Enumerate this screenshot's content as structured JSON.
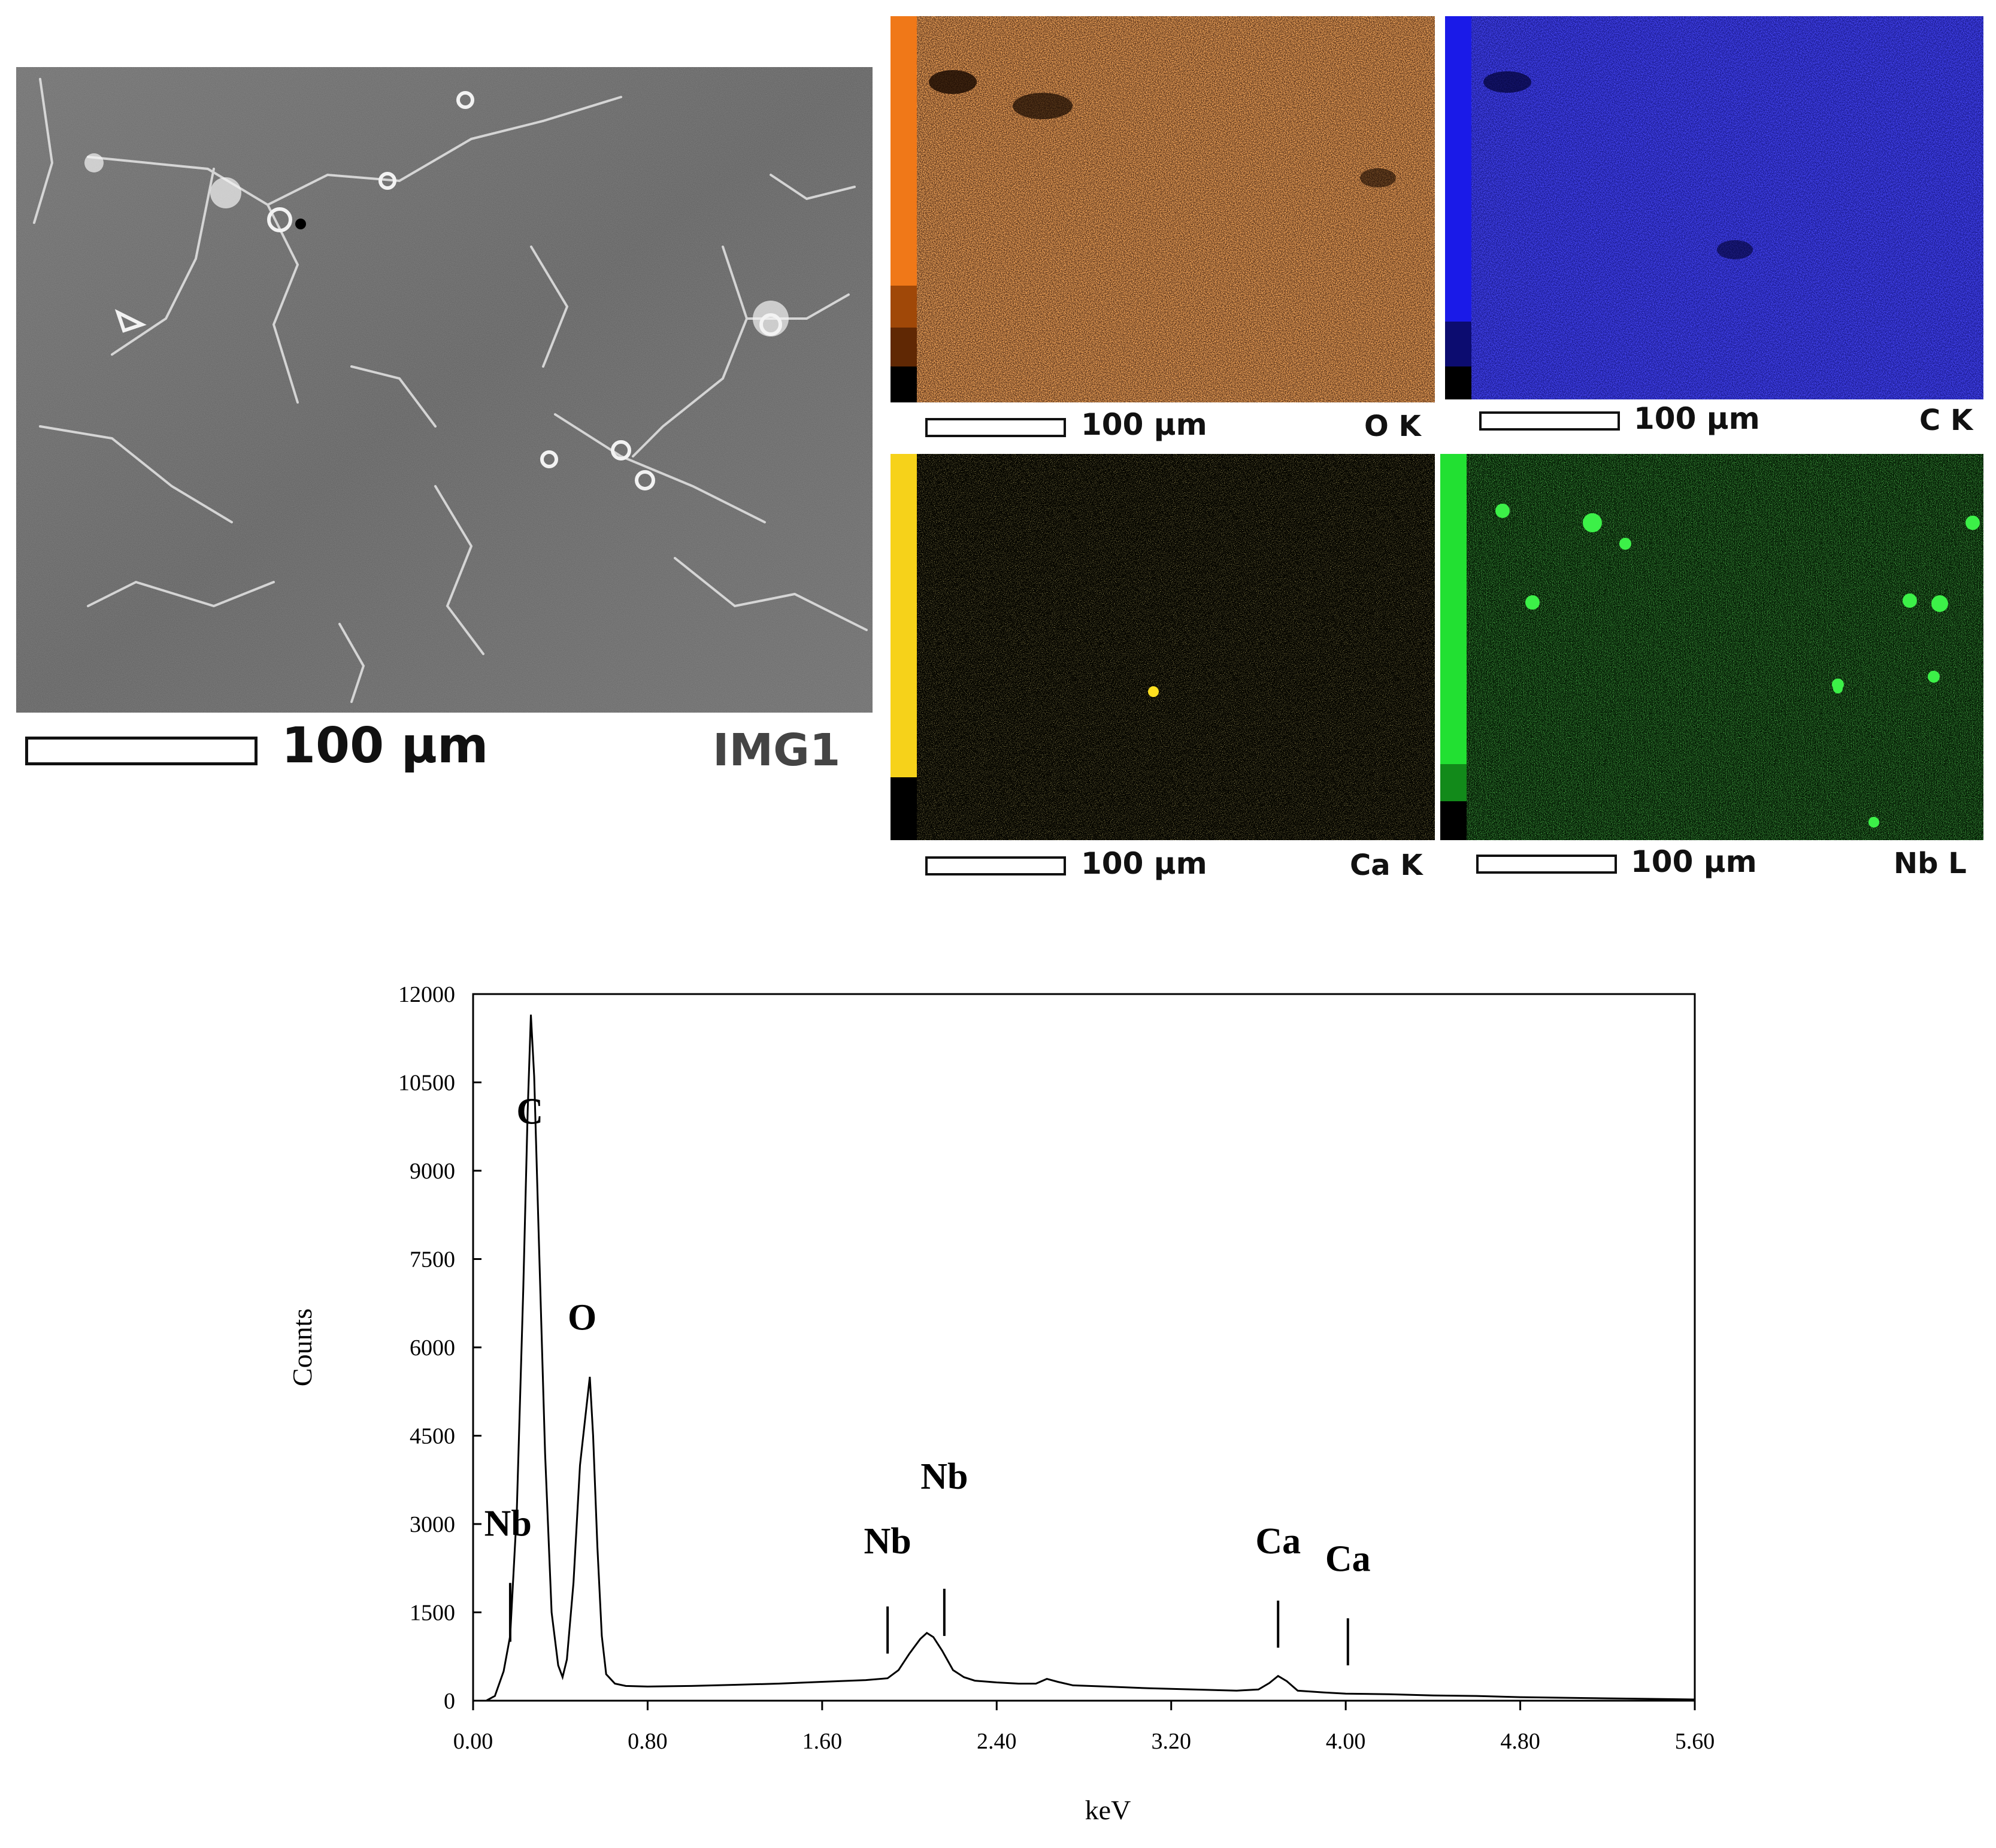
{
  "sem": {
    "scale_text": "100 µm",
    "image_label": "IMG1"
  },
  "maps": [
    {
      "id": "o",
      "scale_text": "100 µm",
      "element_label": "O K",
      "color": "#e0701a"
    },
    {
      "id": "c",
      "scale_text": "100 µm",
      "element_label": "C K",
      "color": "#1a20e0"
    },
    {
      "id": "ca",
      "scale_text": "100 µm",
      "element_label": "Ca K",
      "color": "#e8c828"
    },
    {
      "id": "nb",
      "scale_text": "100 µm",
      "element_label": "Nb L",
      "color": "#22d632"
    }
  ],
  "chart_data": {
    "type": "line",
    "title": "",
    "xlabel": "keV",
    "ylabel": "Counts",
    "xlim": [
      0.0,
      5.6
    ],
    "ylim": [
      0,
      12000
    ],
    "x_ticks": [
      "0.00",
      "0.80",
      "1.60",
      "2.40",
      "3.20",
      "4.00",
      "4.80",
      "5.60"
    ],
    "y_ticks": [
      "0",
      "1500",
      "3000",
      "4500",
      "6000",
      "7500",
      "9000",
      "10500",
      "12000"
    ],
    "grid": false,
    "peak_labels": [
      {
        "text": "C",
        "x": 0.26,
        "y": 9800
      },
      {
        "text": "O",
        "x": 0.5,
        "y": 6300
      },
      {
        "text": "Nb",
        "x": 0.16,
        "y": 2800
      },
      {
        "text": "Nb",
        "x": 1.9,
        "y": 2500
      },
      {
        "text": "Nb",
        "x": 2.16,
        "y": 3600
      },
      {
        "text": "Ca",
        "x": 3.69,
        "y": 2500
      },
      {
        "text": "Ca",
        "x": 4.01,
        "y": 2200
      }
    ],
    "markers": [
      {
        "x": 0.17,
        "y1": 1000,
        "y2": 2000
      },
      {
        "x": 1.9,
        "y1": 800,
        "y2": 1600
      },
      {
        "x": 2.16,
        "y1": 1100,
        "y2": 1900
      },
      {
        "x": 3.69,
        "y1": 900,
        "y2": 1700
      },
      {
        "x": 4.01,
        "y1": 600,
        "y2": 1400
      }
    ],
    "series": [
      {
        "points": [
          [
            0.0,
            0
          ],
          [
            0.06,
            0
          ],
          [
            0.1,
            80
          ],
          [
            0.14,
            500
          ],
          [
            0.17,
            1100
          ],
          [
            0.2,
            3200
          ],
          [
            0.23,
            7000
          ],
          [
            0.25,
            10000
          ],
          [
            0.265,
            11650
          ],
          [
            0.28,
            10600
          ],
          [
            0.3,
            8000
          ],
          [
            0.33,
            4200
          ],
          [
            0.36,
            1500
          ],
          [
            0.39,
            600
          ],
          [
            0.41,
            400
          ],
          [
            0.43,
            700
          ],
          [
            0.46,
            2000
          ],
          [
            0.49,
            4000
          ],
          [
            0.52,
            5000
          ],
          [
            0.535,
            5500
          ],
          [
            0.55,
            4500
          ],
          [
            0.57,
            2600
          ],
          [
            0.59,
            1100
          ],
          [
            0.61,
            450
          ],
          [
            0.65,
            290
          ],
          [
            0.7,
            250
          ],
          [
            0.8,
            240
          ],
          [
            1.0,
            250
          ],
          [
            1.2,
            270
          ],
          [
            1.4,
            290
          ],
          [
            1.6,
            320
          ],
          [
            1.8,
            350
          ],
          [
            1.9,
            380
          ],
          [
            1.95,
            520
          ],
          [
            2.0,
            800
          ],
          [
            2.05,
            1050
          ],
          [
            2.08,
            1150
          ],
          [
            2.11,
            1080
          ],
          [
            2.15,
            850
          ],
          [
            2.2,
            520
          ],
          [
            2.25,
            400
          ],
          [
            2.3,
            340
          ],
          [
            2.4,
            310
          ],
          [
            2.5,
            290
          ],
          [
            2.58,
            290
          ],
          [
            2.63,
            370
          ],
          [
            2.68,
            320
          ],
          [
            2.75,
            260
          ],
          [
            2.9,
            240
          ],
          [
            3.1,
            210
          ],
          [
            3.3,
            190
          ],
          [
            3.5,
            170
          ],
          [
            3.6,
            190
          ],
          [
            3.65,
            300
          ],
          [
            3.69,
            420
          ],
          [
            3.73,
            330
          ],
          [
            3.78,
            170
          ],
          [
            3.9,
            140
          ],
          [
            4.0,
            120
          ],
          [
            4.2,
            110
          ],
          [
            4.4,
            90
          ],
          [
            4.6,
            80
          ],
          [
            4.8,
            60
          ],
          [
            5.0,
            50
          ],
          [
            5.2,
            40
          ],
          [
            5.4,
            30
          ],
          [
            5.6,
            20
          ]
        ]
      }
    ]
  }
}
